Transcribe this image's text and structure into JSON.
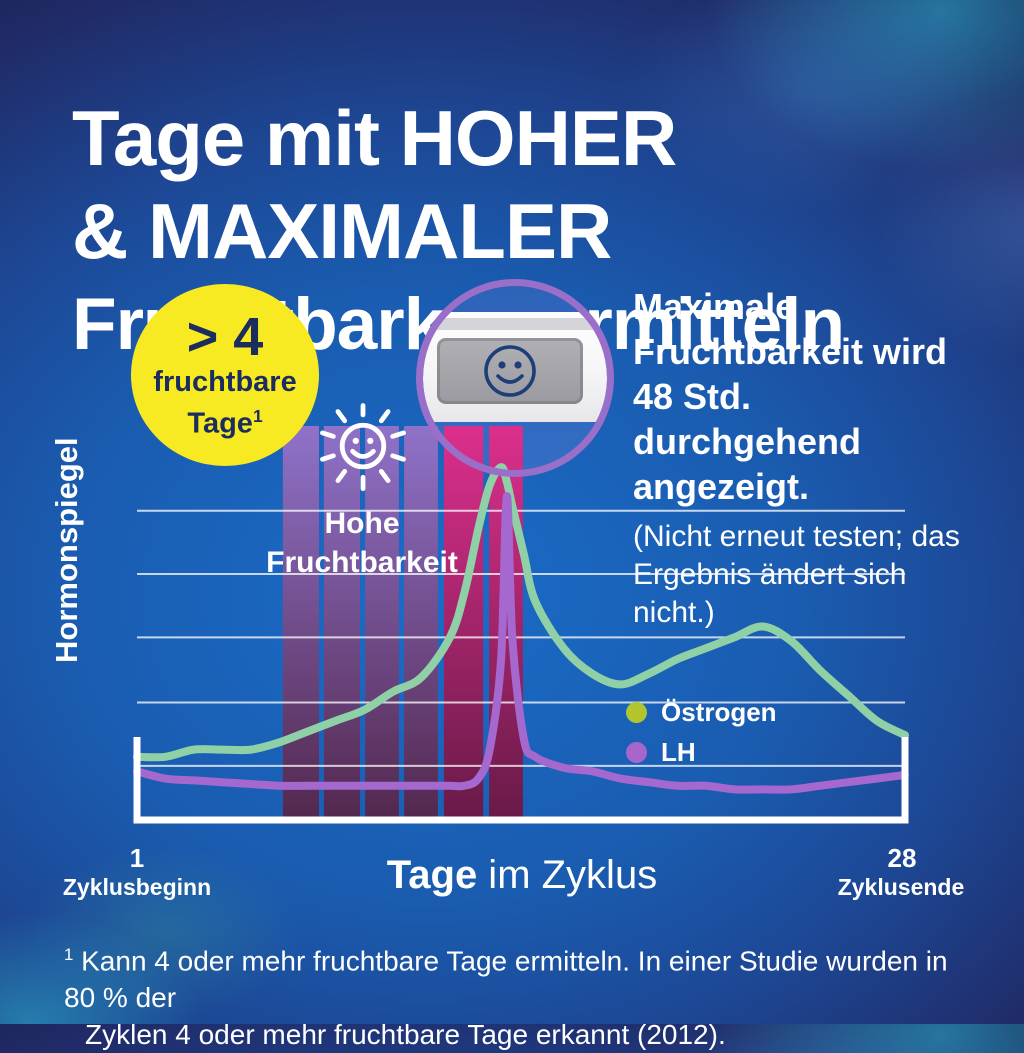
{
  "title": {
    "line1": "Tage mit HOHER",
    "line2": "& MAXIMALER",
    "line3": "Fruchtbarkeit ermitteln"
  },
  "badge": {
    "value": "> 4",
    "line2": "fruchtbare",
    "line3": "Tage",
    "footnote_mark": "1"
  },
  "high_fertility_label": {
    "line1": "Hohe",
    "line2": "Fruchtbarkeit"
  },
  "max_fertility_note": {
    "bold_lines": [
      "Maximale",
      "Fruchtbarkeit wird",
      "48 Std. durchgehend",
      "angezeigt."
    ],
    "note_lines": [
      "(Nicht erneut testen; das",
      "Ergebnis ändert sich nicht.)"
    ]
  },
  "y_axis_label": "Hormonspiegel",
  "x_axis": {
    "start_tick": "1",
    "start_label": "Zyklusbeginn",
    "title_bold": "Tage",
    "title_rest": " im Zyklus",
    "end_tick": "28",
    "end_label": "Zyklusende"
  },
  "legend": [
    {
      "label": "Östrogen",
      "dot_color": "#b2c52f"
    },
    {
      "label": "LH",
      "dot_color": "#a766cb"
    }
  ],
  "footnote": {
    "sup": "1",
    "line1": "Kann 4 oder mehr fruchtbare Tage ermitteln. In einer Studie wurden in 80 % der",
    "line2": "Zyklen 4 oder mehr fruchtbare Tage erkannt (2012)."
  },
  "colors": {
    "accent_yellow": "#f7ea22",
    "badge_text": "#1b2d5e",
    "circle_ring": "#9a6fc9",
    "estrogen_line": "#8fd0a7",
    "lh_line": "#a468cf",
    "band_high_top": "#8f72c9",
    "band_high_bottom": "#53284e",
    "band_peak_top": "#dc2f8c",
    "band_peak_bottom": "#681a48",
    "grid": "rgba(255,255,255,0.75)",
    "axis": "#ffffff"
  },
  "icons": {
    "sun": "sun-smiley-icon",
    "device": "smiley-result-icon"
  },
  "chart_data": {
    "type": "line",
    "xlabel": "Tage im Zyklus",
    "ylabel": "Hormonspiegel",
    "x_range": [
      1,
      28
    ],
    "y_range": [
      0,
      100
    ],
    "grid": "horizontal-only",
    "grid_values": [
      15.5,
      33,
      51,
      68.5,
      86
    ],
    "legend_position": "inside-right",
    "x": [
      1,
      2,
      3,
      4,
      5,
      6,
      7,
      8,
      9,
      10,
      11,
      12,
      12.5,
      13,
      13.4,
      13.8,
      14,
      14.2,
      14.6,
      15,
      16,
      17,
      18,
      19,
      20,
      21,
      22,
      23,
      24,
      25,
      26,
      27,
      28
    ],
    "series": [
      {
        "name": "Östrogen",
        "color": "#8fd0a7",
        "values": [
          18,
          18,
          20,
          20,
          20,
          22,
          25,
          28,
          31,
          36,
          40,
          51,
          63,
          81,
          93,
          98,
          94,
          87,
          74,
          61,
          48,
          41,
          38,
          41,
          45,
          48,
          51,
          54,
          50,
          42,
          35,
          28,
          24
        ]
      },
      {
        "name": "LH",
        "color": "#a468cf",
        "values": [
          14,
          12,
          11.5,
          11,
          10.5,
          10,
          10,
          10,
          10,
          10,
          10,
          10,
          10,
          12,
          20,
          45,
          90,
          50,
          23,
          18,
          15,
          14,
          12,
          11,
          10,
          10,
          9,
          9,
          9,
          10,
          11,
          12,
          13
        ]
      }
    ],
    "bands": {
      "high": {
        "label": "Hohe Fruchtbarkeit",
        "day_columns": [
          [
            6.13,
            7.4
          ],
          [
            7.57,
            8.84
          ],
          [
            9.02,
            10.21
          ],
          [
            10.39,
            11.58
          ]
        ]
      },
      "peak": {
        "label": "Maximale Fruchtbarkeit",
        "day_columns": [
          [
            11.79,
            13.17
          ],
          [
            13.38,
            14.57
          ]
        ]
      }
    }
  }
}
